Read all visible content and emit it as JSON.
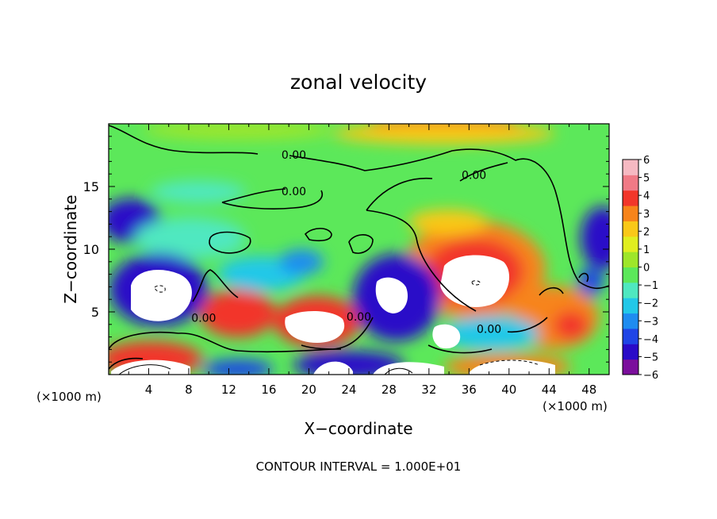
{
  "chart_data": {
    "type": "heatmap",
    "title": "zonal velocity",
    "xlabel": "X−coordinate",
    "ylabel": "Z−coordinate",
    "x_unit_left": "(×1000 m)",
    "x_unit_right": "(×1000 m)",
    "footer": "CONTOUR INTERVAL = 1.000E+01",
    "xlim": [
      0,
      50
    ],
    "ylim": [
      0,
      20
    ],
    "x_ticks": [
      4,
      8,
      12,
      16,
      20,
      24,
      28,
      32,
      36,
      40,
      44,
      48
    ],
    "y_ticks": [
      5,
      10,
      15
    ],
    "colorbar": {
      "min": -6,
      "max": 6,
      "labels": [
        "6",
        "5",
        "4",
        "3",
        "2",
        "1",
        "0",
        "−1",
        "−2",
        "−3",
        "−4",
        "−5",
        "−6"
      ],
      "colors": [
        "#7b0f9c",
        "#2a0bc8",
        "#1f45e6",
        "#1e8cf0",
        "#22c8e8",
        "#4fe8c0",
        "#5ce85a",
        "#9ee62a",
        "#e0ee20",
        "#f9c818",
        "#f7841a",
        "#f2362a",
        "#f07a86",
        "#f6b9c2"
      ]
    },
    "contour_labels": [
      {
        "text": "0.00",
        "x": 18.5,
        "z": 17.4
      },
      {
        "text": "0.00",
        "x": 18.5,
        "z": 14.5
      },
      {
        "text": "0.00",
        "x": 36.5,
        "z": 15.8
      },
      {
        "text": "0.00",
        "x": 9.5,
        "z": 4.4
      },
      {
        "text": "0.00",
        "x": 25.0,
        "z": 4.5
      },
      {
        "text": "0.00",
        "x": 38.0,
        "z": 3.5
      }
    ]
  }
}
